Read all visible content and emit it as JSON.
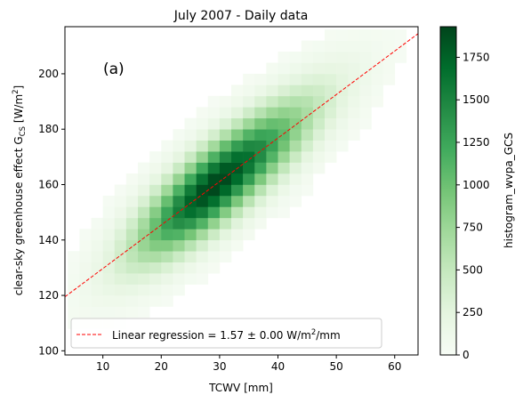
{
  "chart_data": {
    "type": "heatmap",
    "title": "July 2007 - Daily data",
    "xlabel": "TCWV [mm]",
    "ylabel": {
      "main": "clear-sky greenhouse effect G",
      "sub": "CS",
      "unit": " [W/m",
      "sup": "2",
      "end": "]"
    },
    "panel_label": "(a)",
    "xlim": [
      3.5,
      64
    ],
    "ylim": [
      98.5,
      217
    ],
    "xticks": [
      10,
      20,
      30,
      40,
      50,
      60
    ],
    "yticks": [
      100,
      120,
      140,
      160,
      180,
      200
    ],
    "x_bins": [
      4,
      6,
      8,
      10,
      12,
      14,
      16,
      18,
      20,
      22,
      24,
      26,
      28,
      30,
      32,
      34,
      36,
      38,
      40,
      42,
      44,
      46,
      48,
      50,
      52,
      54,
      56,
      58,
      60,
      62,
      64
    ],
    "y_bins": [
      100,
      104,
      108,
      112,
      116,
      120,
      124,
      128,
      132,
      136,
      140,
      144,
      148,
      152,
      156,
      160,
      164,
      168,
      172,
      176,
      180,
      184,
      188,
      192,
      196,
      200,
      204,
      208,
      212,
      216
    ],
    "colorbar": {
      "label": "histogram_wvpa_GCS",
      "range": [
        0,
        1930
      ],
      "ticks": [
        0,
        250,
        500,
        750,
        1000,
        1250,
        1500,
        1750
      ],
      "colormap": [
        "#f7fcf5",
        "#e5f5e0",
        "#c7e9c0",
        "#a1d99b",
        "#74c476",
        "#41ab5d",
        "#238b45",
        "#006d2c",
        "#00441b"
      ]
    },
    "density_model": {
      "ridge_slope": 1.57,
      "ridge_intercept": 114.0,
      "peak_count": 1930,
      "peak_x": 29,
      "peak_y": 160,
      "along_sigma_low": 9,
      "along_sigma_high": 11,
      "across_sigma": 5.5,
      "background_count": 22
    },
    "regression": {
      "slope": 1.57,
      "intercept": 114.0,
      "color": "#ff0000",
      "style": "dashed"
    },
    "legend": {
      "position": "lower-left",
      "label": "Linear regression = 1.57 ± 0.00 W/m",
      "label_sup": "2",
      "label_end": "/mm"
    }
  }
}
